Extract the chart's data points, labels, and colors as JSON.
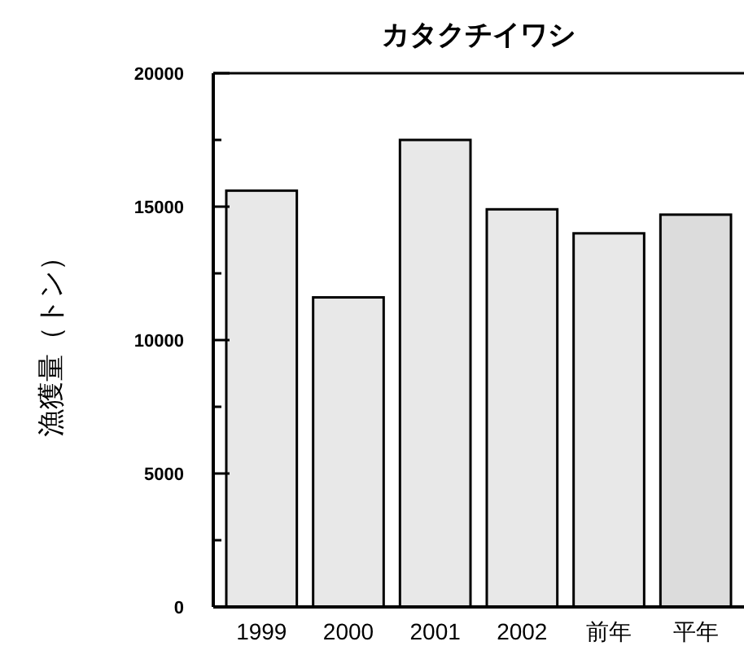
{
  "chart_data": {
    "type": "bar",
    "title": "カタクチイワシ",
    "ylabel": "漁獲量（トン）",
    "categories": [
      "1999",
      "2000",
      "2001",
      "2002",
      "前年",
      "平年"
    ],
    "values": [
      15600,
      11600,
      17500,
      14900,
      14000,
      14700
    ],
    "colors": [
      "#e8e8e8",
      "#e8e8e8",
      "#e8e8e8",
      "#e8e8e8",
      "#e8e8e8",
      "#dcdcdc"
    ],
    "ylim": [
      0,
      20000
    ],
    "yticks": [
      0,
      {
        "value": 2500,
        "label": null
      },
      5000,
      {
        "value": 7500,
        "label": null
      },
      10000,
      {
        "value": 12500,
        "label": null
      },
      15000,
      {
        "value": 17500,
        "label": null
      },
      20000
    ],
    "grid": false
  }
}
